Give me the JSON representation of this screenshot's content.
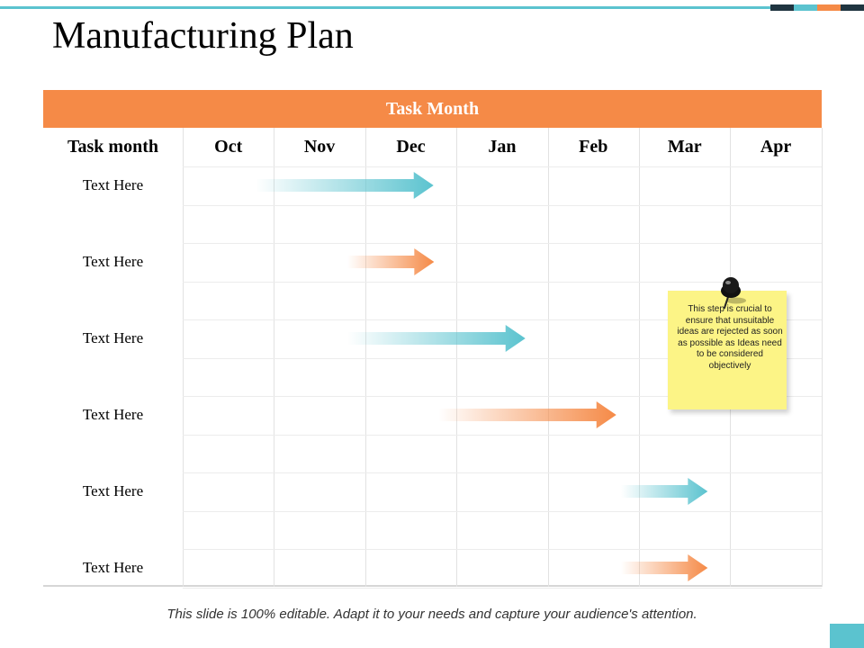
{
  "title": "Manufacturing Plan",
  "colors": {
    "accent_orange": "#f58a47",
    "accent_teal": "#5bc3cf",
    "dark_navy": "#1f3440",
    "note_yellow": "#fcf486"
  },
  "header": {
    "banner": "Task Month"
  },
  "table": {
    "first_column_header": "Task month",
    "months": [
      "Oct",
      "Nov",
      "Dec",
      "Jan",
      "Feb",
      "Mar",
      "Apr"
    ],
    "rows": [
      {
        "label": "Text Here",
        "start_month": "Oct",
        "end_month": "Dec",
        "color": "teal"
      },
      {
        "label": "Text Here",
        "start_month": "Nov",
        "end_month": "Dec",
        "color": "orange"
      },
      {
        "label": "Text Here",
        "start_month": "Nov",
        "end_month": "Jan",
        "color": "teal"
      },
      {
        "label": "Text Here",
        "start_month": "Dec",
        "end_month": "Feb",
        "color": "orange"
      },
      {
        "label": "Text Here",
        "start_month": "Feb",
        "end_month": "Mar",
        "color": "teal"
      },
      {
        "label": "Text Here",
        "start_month": "Feb",
        "end_month": "Mar",
        "color": "orange"
      }
    ]
  },
  "note": {
    "text": "This step is crucial to ensure that unsuitable ideas are rejected as soon as possible as Ideas need to be considered objectively",
    "icon": "pushpin-icon"
  },
  "footer": "This slide is 100% editable. Adapt it to your needs and capture your audience's attention."
}
